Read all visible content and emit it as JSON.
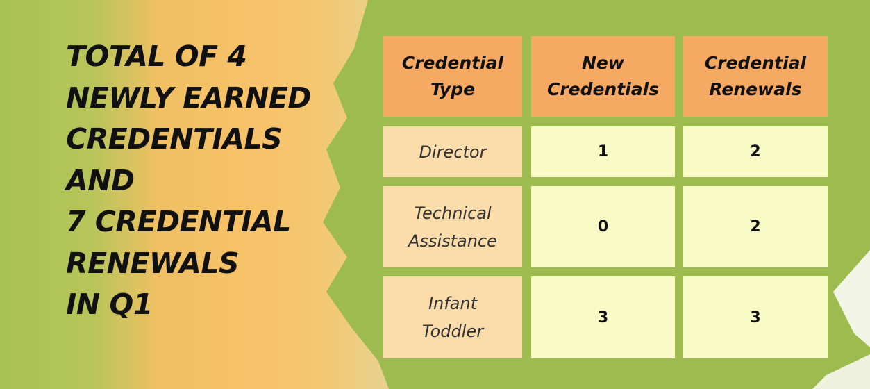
{
  "headline": {
    "lines": [
      "TOTAL OF 4",
      "NEWLY EARNED",
      "CREDENTIALS",
      "AND",
      "7 CREDENTIAL",
      "RENEWALS",
      "IN Q1"
    ]
  },
  "table": {
    "header": [
      [
        "Credential",
        "Type"
      ],
      [
        "New",
        "Credentials"
      ],
      [
        "Credential",
        "Renewals"
      ]
    ],
    "rows": [
      {
        "label": [
          "Director"
        ],
        "new_credentials": 1,
        "credential_renewals": 2
      },
      {
        "label": [
          "Technical",
          "Assistance"
        ],
        "new_credentials": 0,
        "credential_renewals": 2
      },
      {
        "label": [
          "Infant",
          "Toddler"
        ],
        "new_credentials": 3,
        "credential_renewals": 3
      }
    ]
  }
}
